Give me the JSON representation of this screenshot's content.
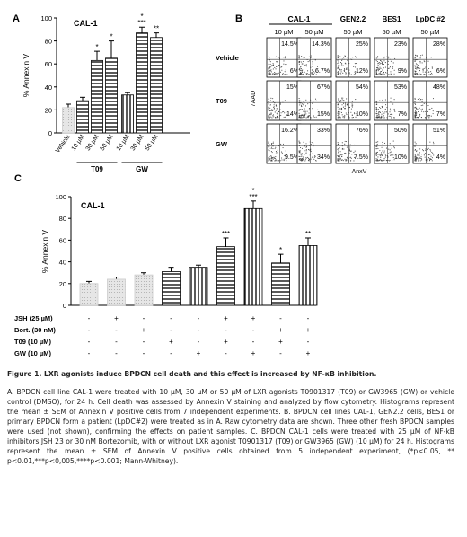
{
  "panel_labels": {
    "a": "A",
    "b": "B",
    "c": "C"
  },
  "chart_data": [
    {
      "panel": "A",
      "type": "bar",
      "title": "CAL-1",
      "ylabel": "% Annexin V",
      "ylim": [
        0,
        100
      ],
      "yticks": [
        "0",
        "20",
        "40",
        "60",
        "80",
        "100"
      ],
      "categories": [
        "Vehicle",
        "10 µM",
        "30 µM",
        "50 µM",
        "10 µM",
        "30 µM",
        "50 µM"
      ],
      "values": [
        22,
        28,
        63,
        65,
        33,
        87,
        83
      ],
      "errors": [
        3,
        3,
        8,
        15,
        2,
        5,
        4
      ],
      "significance": [
        "",
        "",
        "*",
        "*",
        "",
        "*\n***",
        "**"
      ],
      "groups": [
        {
          "label": "T09",
          "from": 1,
          "to": 3
        },
        {
          "label": "GW",
          "from": 4,
          "to": 6
        }
      ]
    },
    {
      "panel": "C",
      "type": "bar",
      "title": "CAL-1",
      "ylabel": "% Annexin V",
      "ylim": [
        0,
        100
      ],
      "yticks": [
        "0",
        "20",
        "40",
        "60",
        "80",
        "100"
      ],
      "values": [
        20,
        24,
        28,
        31,
        35,
        54,
        89,
        39,
        55
      ],
      "errors": [
        2,
        2,
        2,
        4,
        2,
        8,
        7,
        8,
        7
      ],
      "significance": [
        "",
        "",
        "",
        "",
        "",
        "***",
        "*\n***",
        "*",
        "**"
      ],
      "treatment_rows": [
        {
          "label": "JSH (25 µM)",
          "marks": [
            "-",
            "+",
            "-",
            "-",
            "-",
            "+",
            "+",
            "-",
            "-"
          ]
        },
        {
          "label": "Bort. (30 nM)",
          "marks": [
            "-",
            "-",
            "+",
            "-",
            "-",
            "-",
            "-",
            "+",
            "+"
          ]
        },
        {
          "label": "T09 (10 µM)",
          "marks": [
            "-",
            "-",
            "-",
            "+",
            "-",
            "+",
            "-",
            "+",
            "-"
          ]
        },
        {
          "label": "GW (10 µM)",
          "marks": [
            "-",
            "-",
            "-",
            "-",
            "+",
            "-",
            "+",
            "-",
            "+"
          ]
        }
      ]
    }
  ],
  "flow": {
    "columns": [
      "CAL-1",
      "GEN2.2",
      "BES1",
      "LpDC #2"
    ],
    "concentrations": [
      "10 µM",
      "50 µM",
      "50 µM",
      "50 µM",
      "50 µM"
    ],
    "rows": [
      "Vehicle",
      "T09",
      "GW"
    ],
    "ylabel": "7AAD",
    "xlabel": "AnxV",
    "values": [
      [
        [
          "14.5%",
          "6%"
        ],
        [
          "14.3%",
          "6.7%"
        ],
        [
          "25%",
          "12%"
        ],
        [
          "23%",
          "9%"
        ],
        [
          "28%",
          "6%"
        ]
      ],
      [
        [
          "15%",
          "14%"
        ],
        [
          "67%",
          "15%"
        ],
        [
          "54%",
          "10%"
        ],
        [
          "53%",
          "7%"
        ],
        [
          "48%",
          "7%"
        ]
      ],
      [
        [
          "16.2%",
          "9.5%"
        ],
        [
          "33%",
          "34%"
        ],
        [
          "76%",
          "7.5%"
        ],
        [
          "50%",
          "10%"
        ],
        [
          "51%",
          "4%"
        ]
      ]
    ]
  },
  "caption": {
    "title": "Figure 1. LXR agonists induce BPDCN cell death and this effect is increased by NF-κB inhibition.",
    "body": "A. BPDCN cell line CAL-1 were treated with 10 µM, 30 µM or 50 µM of LXR agonists T0901317 (T09) or GW3965 (GW) or vehicle control (DMSO), for 24 h. Cell death was assessed by Annexin V staining and analyzed by flow cytometry. Histograms represent the mean ± SEM of Annexin V positive cells from 7 independent experiments. B. BPDCN cell lines CAL-1, GEN2.2 cells, BES1 or primary BPDCN form a patient (LpDC#2) were treated as in A. Raw cytometry data are shown. Three other fresh BPDCN samples were used (not shown), confirming the effects on patient samples. C. BPDCN CAL-1 cells were treated with 25 µM of NF-kB inhibitors JSH 23 or 30 nM Bortezomib, with or without LXR agonist T0901317 (T09) or GW3965 (GW) (10 µM) for 24 h. Histograms represent the mean ± SEM of Annexin V positive cells obtained from 5 independent experiment, (*p<0.05, ** p<0.01,***p<0,005,****p<0.001; Mann-Whitney)."
  }
}
